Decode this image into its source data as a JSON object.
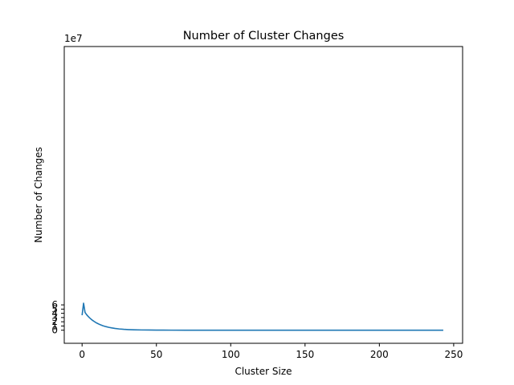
{
  "chart_data": {
    "type": "line",
    "title": "Number of Cluster Changes",
    "xlabel": "Cluster Size",
    "ylabel": "Number of Changes",
    "y_offset_label": "1e7",
    "xlim": [
      -12,
      256
    ],
    "ylim": [
      -3.1,
      67.2
    ],
    "y_unit_multiplier": 10000000,
    "xticks": [
      0,
      50,
      100,
      150,
      200,
      250
    ],
    "xtick_labels": [
      "0",
      "50",
      "100",
      "150",
      "200",
      "250"
    ],
    "yticks": [
      0,
      1,
      2,
      3,
      4,
      5,
      6
    ],
    "ytick_labels": [
      "0",
      "1",
      "2",
      "3",
      "4",
      "5",
      "6"
    ],
    "grid": false,
    "legend": "none",
    "series_color": "#1f77b4",
    "series": [
      {
        "x": [
          0,
          1,
          2,
          3,
          4,
          5,
          6,
          7,
          8,
          9,
          10,
          12,
          14,
          16,
          18,
          20,
          22,
          25,
          28,
          31,
          35,
          40,
          45,
          50,
          55,
          60,
          70,
          80,
          90,
          100,
          110,
          125,
          150,
          175,
          200,
          225,
          243
        ],
        "y": [
          3.55,
          6.4,
          4.2,
          3.7,
          3.3,
          2.95,
          2.63,
          2.35,
          2.1,
          1.87,
          1.67,
          1.33,
          1.06,
          0.85,
          0.68,
          0.54,
          0.43,
          0.3,
          0.21,
          0.15,
          0.1,
          0.06,
          0.04,
          0.025,
          0.017,
          0.012,
          0.006,
          0.003,
          0.0015,
          0.0008,
          0.0004,
          0.0002,
          0.0001,
          5e-05,
          2e-05,
          1e-05,
          0.0
        ]
      }
    ]
  }
}
